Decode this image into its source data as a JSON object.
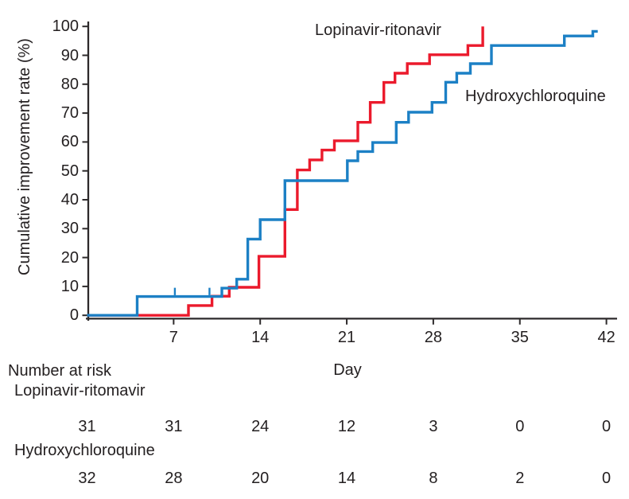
{
  "chart_data": {
    "type": "line",
    "subtype": "kaplan-meier-step-curves",
    "title": "",
    "xlabel": "Day",
    "ylabel": "Cumulative improvement rate (%)",
    "xlim": [
      0,
      42.9
    ],
    "ylim": [
      0,
      100
    ],
    "x_ticks": [
      7,
      14,
      21,
      28,
      35,
      42
    ],
    "y_ticks": [
      0,
      10,
      20,
      30,
      40,
      50,
      60,
      70,
      80,
      90,
      100
    ],
    "grid": false,
    "legend_position": "labels placed beside curves",
    "series": [
      {
        "name": "Lopinavir-ritonavir",
        "color": "#eb1a2c",
        "points_day_pct": [
          [
            0,
            0
          ],
          [
            8.2,
            3.4
          ],
          [
            10.1,
            6.6
          ],
          [
            11.5,
            9.7
          ],
          [
            13.9,
            20.4
          ],
          [
            16,
            36.6
          ],
          [
            17,
            50.3
          ],
          [
            18,
            53.8
          ],
          [
            19,
            57.2
          ],
          [
            20,
            60.4
          ],
          [
            21.9,
            66.8
          ],
          [
            22.9,
            73.7
          ],
          [
            24,
            80.6
          ],
          [
            24.9,
            83.8
          ],
          [
            25.9,
            87.1
          ],
          [
            27.7,
            90.2
          ],
          [
            30.8,
            93.4
          ],
          [
            32,
            100
          ]
        ],
        "end_day": 32,
        "censor_ticks_day_pct": []
      },
      {
        "name": "Hydroxychloroquine",
        "color": "#1c80c5",
        "points_day_pct": [
          [
            0,
            0
          ],
          [
            4.05,
            6.5
          ],
          [
            10.9,
            9.4
          ],
          [
            12.1,
            12.5
          ],
          [
            13,
            26.4
          ],
          [
            14,
            33.1
          ],
          [
            16,
            46.6
          ],
          [
            21.05,
            53.5
          ],
          [
            21.9,
            56.7
          ],
          [
            23.1,
            59.8
          ],
          [
            25,
            66.8
          ],
          [
            26,
            70.3
          ],
          [
            27.9,
            73.7
          ],
          [
            29,
            80.7
          ],
          [
            29.9,
            83.8
          ],
          [
            31,
            87.1
          ],
          [
            32.7,
            93.4
          ],
          [
            38.6,
            96.7
          ],
          [
            40.9,
            98.3
          ]
        ],
        "end_day": 41.3,
        "censor_ticks_day_pct": [
          [
            7.1,
            6.5
          ],
          [
            9.9,
            6.5
          ]
        ]
      }
    ]
  },
  "risk_table": {
    "header": "Number at risk",
    "days": [
      0,
      7,
      14,
      21,
      28,
      35,
      42
    ],
    "rows": [
      {
        "label": "Lopinavir-ritomavir",
        "values": [
          31,
          31,
          24,
          12,
          3,
          0,
          0
        ]
      },
      {
        "label": "Hydroxychloroquine",
        "values": [
          32,
          28,
          20,
          14,
          8,
          2,
          0
        ]
      }
    ]
  },
  "colors": {
    "lopinavir": "#eb1a2c",
    "hydroxychloroquine": "#1c80c5",
    "axis": "#2d2a2b",
    "text": "#231f20",
    "background": "#ffffff"
  }
}
